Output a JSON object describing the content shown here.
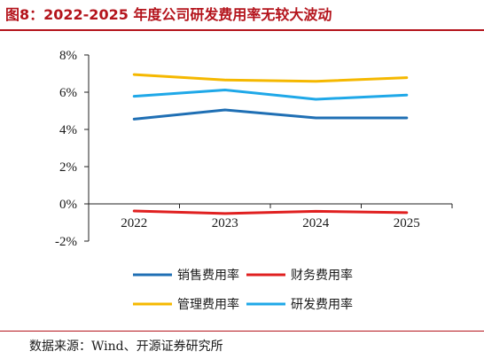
{
  "title": "图8：2022-2025 年度公司研发费用率无较大波动",
  "source": "数据来源：Wind、开源证券研究所",
  "colors": {
    "title": "#b4141c",
    "销售费用率": "#1f6fb4",
    "财务费用率": "#e02020",
    "管理费用率": "#f5b800",
    "研发费用率": "#1fa8e8"
  },
  "chart_data": {
    "type": "line",
    "categories": [
      "2022",
      "2023",
      "2024",
      "2025"
    ],
    "series": [
      {
        "name": "销售费用率",
        "values": [
          4.55,
          5.05,
          4.62,
          4.62
        ]
      },
      {
        "name": "财务费用率",
        "values": [
          -0.38,
          -0.52,
          -0.4,
          -0.47
        ]
      },
      {
        "name": "管理费用率",
        "values": [
          6.95,
          6.65,
          6.58,
          6.78
        ]
      },
      {
        "name": "研发费用率",
        "values": [
          5.78,
          6.12,
          5.62,
          5.85
        ]
      }
    ],
    "ylim": [
      -2,
      8
    ],
    "yticks": [
      -2,
      0,
      2,
      4,
      6,
      8
    ],
    "ytick_labels": [
      "-2%",
      "0%",
      "2%",
      "4%",
      "6%",
      "8%"
    ],
    "legend_order": [
      "销售费用率",
      "财务费用率",
      "管理费用率",
      "研发费用率"
    ],
    "legend_position": "bottom",
    "grid": false
  }
}
